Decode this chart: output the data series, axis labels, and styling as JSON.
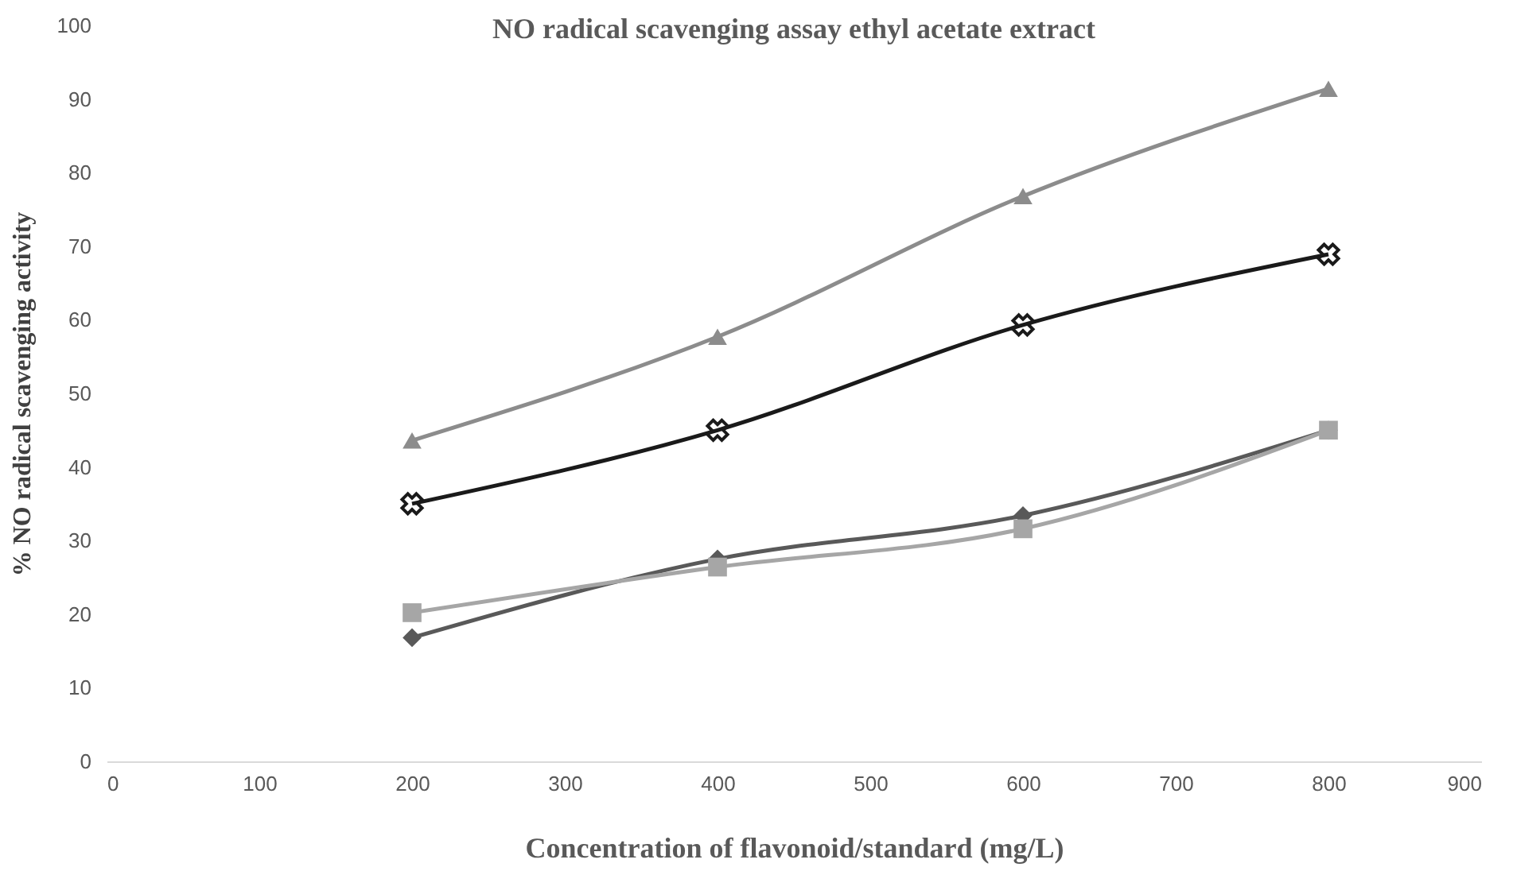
{
  "chart_data": {
    "type": "line",
    "title": "NO radical scavenging assay ethyl acetate extract",
    "xlabel": "Concentration of flavonoid/standard (mg/L)",
    "ylabel": "%  NO radical scavenging activity",
    "x": [
      200,
      400,
      600,
      800
    ],
    "series": [
      {
        "color": "#595959",
        "values": [
          16.8,
          27.5,
          33.4,
          45.0
        ],
        "marker": "diamond"
      },
      {
        "color": "#a6a6a6",
        "values": [
          20.2,
          26.4,
          31.6,
          45.0
        ],
        "marker": "square"
      },
      {
        "color": "#8c8c8c",
        "values": [
          43.6,
          57.7,
          76.8,
          91.4
        ],
        "marker": "triangle"
      },
      {
        "color": "#1a1a1a",
        "values": [
          35.0,
          45.0,
          59.3,
          68.9
        ],
        "marker": "cross"
      }
    ],
    "xlim": [
      0,
      900
    ],
    "xticks": [
      0,
      100,
      200,
      300,
      400,
      500,
      600,
      700,
      800,
      900
    ],
    "ylim": [
      0,
      100
    ],
    "yticks": [
      0,
      10,
      20,
      30,
      40,
      50,
      60,
      70,
      80,
      90,
      100
    ],
    "grid": false,
    "line_style": "solid"
  }
}
